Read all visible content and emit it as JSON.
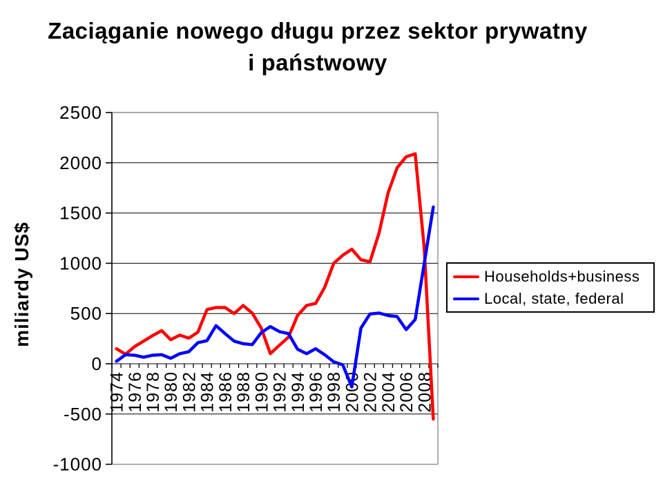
{
  "title": {
    "line1": "Zaciąganie nowego długu przez sektor prywatny",
    "line2": "i państwowy"
  },
  "y_axis_label": "miliardy US$",
  "legend": {
    "items": [
      {
        "label": "Households+business",
        "color": "#ff0000"
      },
      {
        "label": "Local, state, federal",
        "color": "#0000ff"
      }
    ]
  },
  "chart_data": {
    "type": "line",
    "title": "Zaciąganie nowego długu przez sektor prywatny i państwowy",
    "ylabel": "miliardy US$",
    "ylim": [
      -1000,
      2500
    ],
    "y_ticks": [
      2500,
      2000,
      1500,
      1000,
      500,
      0,
      -500,
      -1000
    ],
    "grid": "horizontal, every 500, zero-line is x-axis",
    "legend_position": "right-middle",
    "x_years": [
      1974,
      1975,
      1976,
      1977,
      1978,
      1979,
      1980,
      1981,
      1982,
      1983,
      1984,
      1985,
      1986,
      1987,
      1988,
      1989,
      1990,
      1991,
      1992,
      1993,
      1994,
      1995,
      1996,
      1997,
      1998,
      1999,
      2000,
      2001,
      2002,
      2003,
      2004,
      2005,
      2006,
      2007,
      2008,
      2009
    ],
    "x_tick_labels": [
      "1974",
      "1976",
      "1978",
      "1980",
      "1982",
      "1984",
      "1986",
      "1988",
      "1990",
      "1992",
      "1994",
      "1996",
      "1998",
      "2000",
      "2002",
      "2004",
      "2006",
      "2008"
    ],
    "series": [
      {
        "name": "Households+business",
        "color": "#ff0000",
        "values": [
          150,
          95,
          170,
          225,
          280,
          330,
          240,
          285,
          255,
          315,
          540,
          560,
          560,
          500,
          580,
          505,
          355,
          100,
          185,
          265,
          480,
          580,
          600,
          760,
          1000,
          1080,
          1140,
          1035,
          1015,
          1300,
          1700,
          1950,
          2060,
          2090,
          1150,
          -550
        ]
      },
      {
        "name": "Local, state, federal",
        "color": "#0000ff",
        "values": [
          25,
          90,
          85,
          65,
          85,
          90,
          55,
          100,
          120,
          210,
          230,
          380,
          300,
          225,
          200,
          190,
          310,
          370,
          320,
          300,
          145,
          100,
          150,
          90,
          20,
          -10,
          -230,
          355,
          495,
          505,
          480,
          470,
          340,
          440,
          1000,
          1560
        ]
      }
    ]
  }
}
